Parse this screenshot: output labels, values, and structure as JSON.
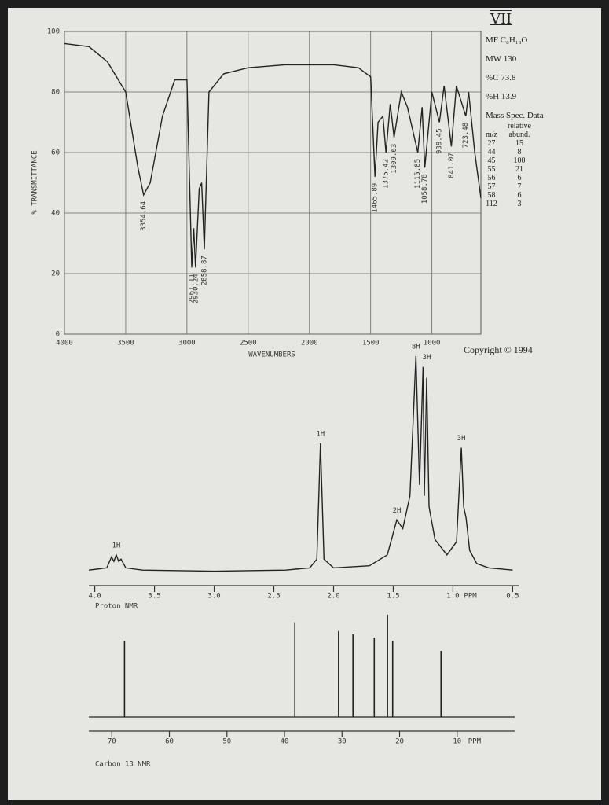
{
  "sidebar": {
    "label": "VII",
    "formula": "MF C₈H₁₈O",
    "mw": "MW 130",
    "carbon": "%C 73.8",
    "hydrogen": "%H 13.9",
    "ms_title": "Mass Spec. Data",
    "ms_header": [
      "m/z",
      "relative abund."
    ],
    "ms_rows": [
      [
        27,
        15
      ],
      [
        44,
        8
      ],
      [
        45,
        100
      ],
      [
        55,
        21
      ],
      [
        56,
        6
      ],
      [
        57,
        7
      ],
      [
        58,
        6
      ],
      [
        112,
        3
      ]
    ],
    "copyright": "Copyright © 1994"
  },
  "chart_data": [
    {
      "type": "line",
      "y_label": "% TRANSMITTANCE",
      "x_label": "WAVENUMBERS",
      "color": "#222",
      "x": [
        4000,
        3800,
        3650,
        3500,
        3400,
        3354,
        3300,
        3200,
        3100,
        3000,
        2961,
        2945,
        2930,
        2900,
        2880,
        2858,
        2820,
        2700,
        2500,
        2200,
        2000,
        1800,
        1600,
        1500,
        1465,
        1440,
        1400,
        1375,
        1340,
        1309,
        1250,
        1200,
        1115,
        1080,
        1058,
        1000,
        939,
        900,
        841,
        800,
        723,
        700,
        650,
        600
      ],
      "values": [
        96,
        95,
        90,
        80,
        55,
        46,
        50,
        72,
        84,
        84,
        22,
        35,
        22,
        48,
        50,
        28,
        80,
        86,
        88,
        89,
        89,
        89,
        88,
        85,
        52,
        70,
        72,
        60,
        76,
        65,
        80,
        75,
        60,
        75,
        55,
        80,
        70,
        82,
        62,
        82,
        72,
        80,
        60,
        45
      ],
      "xlim": [
        4000,
        600
      ],
      "ylim": [
        0,
        100
      ],
      "xticks": [
        4000,
        3500,
        3000,
        2500,
        2000,
        1500,
        1000
      ],
      "yticks": [
        0,
        20,
        40,
        60,
        80,
        100
      ],
      "grid": true,
      "peak_labels": [
        3354.64,
        2961.11,
        2930.24,
        2858.87,
        1465.89,
        1375.42,
        1309.63,
        1115.85,
        1058.78,
        939.45,
        841.07,
        723.48
      ]
    },
    {
      "type": "line",
      "title": "Proton NMR",
      "x_label": "PPM",
      "color": "#222",
      "x": [
        4.05,
        3.9,
        3.86,
        3.84,
        3.82,
        3.8,
        3.78,
        3.74,
        3.6,
        3,
        2.4,
        2.2,
        2.14,
        2.11,
        2.08,
        2,
        1.7,
        1.55,
        1.47,
        1.42,
        1.36,
        1.31,
        1.28,
        1.25,
        1.24,
        1.22,
        1.2,
        1.15,
        1.05,
        0.97,
        0.93,
        0.91,
        0.89,
        0.86,
        0.8,
        0.7,
        0.5
      ],
      "values": [
        1,
        2,
        7,
        5,
        8,
        5,
        6,
        2,
        1,
        0.5,
        1,
        2,
        6,
        59,
        6,
        2,
        3,
        8,
        24,
        20,
        35,
        99,
        40,
        94,
        35,
        89,
        30,
        15,
        8,
        14,
        57,
        30,
        25,
        10,
        4,
        2,
        1
      ],
      "xlim": [
        4.05,
        0.45
      ],
      "ylim": [
        0,
        100
      ],
      "xticks": [
        {
          "value": 4,
          "label": "4.0"
        },
        3.5,
        {
          "value": 3,
          "label": "3.0"
        },
        2.5,
        {
          "value": 2,
          "label": "2.0"
        },
        1.5,
        {
          "value": 1,
          "label": "1.0"
        },
        0.5
      ],
      "annotations": [
        {
          "x": 3.82,
          "text": "1H"
        },
        {
          "x": 2.11,
          "text": "1H"
        },
        {
          "x": 1.47,
          "text": "2H"
        },
        {
          "x": 1.31,
          "text": "8H"
        },
        {
          "x": 1.22,
          "text": "3H"
        },
        {
          "x": 0.93,
          "text": "3H"
        }
      ]
    },
    {
      "type": "stick",
      "title": "Carbon 13 NMR",
      "x_label": "PPM",
      "color": "#222",
      "x": [
        67.8,
        38.2,
        30.6,
        28.1,
        24.4,
        22.1,
        21.2,
        12.8
      ],
      "values": [
        69,
        86,
        78,
        75,
        72,
        93,
        69,
        60
      ],
      "xlim": [
        74,
        0
      ],
      "ylim": [
        0,
        100
      ],
      "xticks": [
        70,
        60,
        50,
        40,
        30,
        20,
        10
      ]
    }
  ]
}
